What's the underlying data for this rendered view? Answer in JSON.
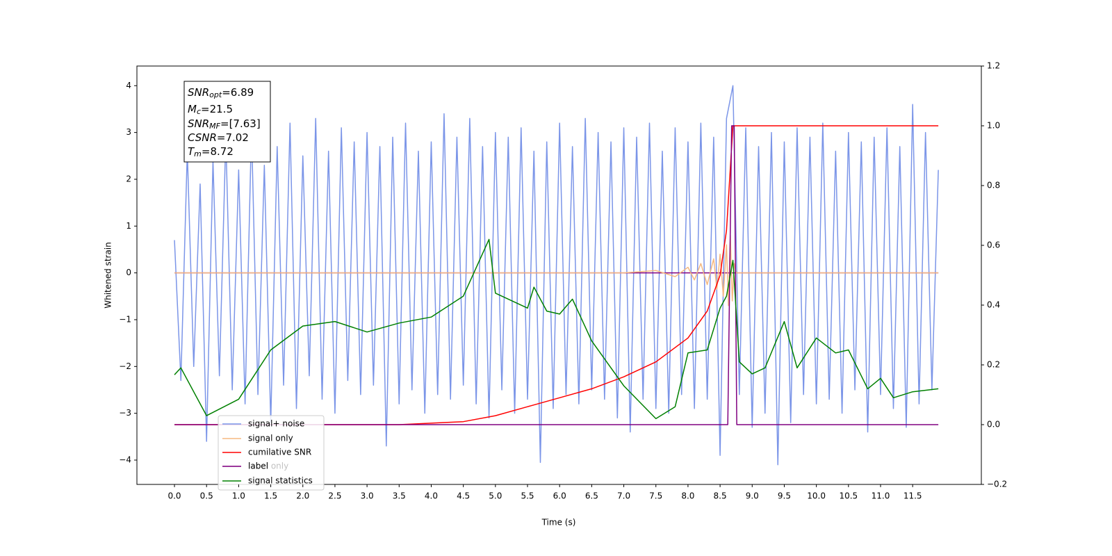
{
  "chart_data": {
    "type": "line",
    "x_label": "Time (s)",
    "y_label": "Whitened strain",
    "xlim": [
      -0.585,
      12.57
    ],
    "ylim": [
      -4.52,
      4.42
    ],
    "y2lim": [
      -0.2,
      1.2
    ],
    "xticks": [
      {
        "value": 0,
        "label": "0.0"
      },
      0.5,
      {
        "value": 1,
        "label": "1.0"
      },
      1.5,
      {
        "value": 2,
        "label": "2.0"
      },
      2.5,
      {
        "value": 3,
        "label": "3.0"
      },
      3.5,
      {
        "value": 4,
        "label": "4.0"
      },
      4.5,
      {
        "value": 5,
        "label": "5.0"
      },
      5.5,
      {
        "value": 6,
        "label": "6.0"
      },
      6.5,
      {
        "value": 7,
        "label": "7.0"
      },
      7.5,
      {
        "value": 8,
        "label": "8.0"
      },
      8.5,
      {
        "value": 9,
        "label": "9.0"
      },
      9.5,
      {
        "value": 10,
        "label": "10.0"
      },
      10.5,
      {
        "value": 11,
        "label": "11.0"
      },
      11.5
    ],
    "yticks": [
      {
        "value": -4,
        "label": "−4"
      },
      {
        "value": -3,
        "label": "−3"
      },
      {
        "value": -2,
        "label": "−2"
      },
      {
        "value": -1,
        "label": "−1"
      },
      0,
      1,
      2,
      3,
      4
    ],
    "y2ticks": [
      {
        "value": -0.2,
        "label": "−0.2"
      },
      {
        "value": 0,
        "label": "0.0"
      },
      0.2,
      0.4,
      0.6,
      0.8,
      {
        "value": 1,
        "label": "1.0"
      },
      1.2
    ],
    "annotation": [
      {
        "main": "SNR",
        "sub": "opt",
        "rest": "=6.89"
      },
      {
        "main": "M",
        "sub": "c",
        "rest": "=21.5"
      },
      {
        "main": "SNR",
        "sub": "MF",
        "rest": "=[7.63]"
      },
      {
        "main": "CSNR",
        "sub": null,
        "rest": "=7.02"
      },
      {
        "main": "T",
        "sub": "m",
        "rest": "=8.72"
      }
    ],
    "series": [
      {
        "name": "signal+ noise",
        "color": "#7b95e8",
        "axis": "y",
        "x": [
          0,
          0.1,
          0.2,
          0.3,
          0.4,
          0.5,
          0.6,
          0.7,
          0.8,
          0.9,
          1,
          1.1,
          1.2,
          1.3,
          1.4,
          1.5,
          1.6,
          1.7,
          1.8,
          1.9,
          2,
          2.1,
          2.2,
          2.3,
          2.4,
          2.5,
          2.6,
          2.7,
          2.8,
          2.9,
          3,
          3.1,
          3.2,
          3.3,
          3.4,
          3.5,
          3.6,
          3.7,
          3.8,
          3.9,
          4,
          4.1,
          4.2,
          4.3,
          4.4,
          4.5,
          4.6,
          4.7,
          4.8,
          4.9,
          5,
          5.1,
          5.2,
          5.3,
          5.4,
          5.5,
          5.6,
          5.7,
          5.8,
          5.9,
          6,
          6.1,
          6.2,
          6.3,
          6.4,
          6.5,
          6.6,
          6.7,
          6.8,
          6.9,
          7,
          7.1,
          7.2,
          7.3,
          7.4,
          7.5,
          7.6,
          7.7,
          7.8,
          7.9,
          8,
          8.1,
          8.2,
          8.3,
          8.4,
          8.5,
          8.6,
          8.7,
          8.8,
          8.9,
          9,
          9.1,
          9.2,
          9.3,
          9.4,
          9.5,
          9.6,
          9.7,
          9.8,
          9.9,
          10,
          10.1,
          10.2,
          10.3,
          10.4,
          10.5,
          10.6,
          10.7,
          10.8,
          10.9,
          11,
          11.1,
          11.2,
          11.3,
          11.4,
          11.5,
          11.6,
          11.7,
          11.8,
          11.9
        ],
        "values": [
          0.7,
          -2.3,
          2.6,
          -2.0,
          1.9,
          -3.6,
          2.4,
          -2.2,
          2.9,
          -2.5,
          2.2,
          -2.8,
          3.1,
          -2.6,
          2.3,
          -3.2,
          2.7,
          -2.4,
          3.2,
          -2.9,
          2.5,
          -2.2,
          3.3,
          -2.7,
          2.6,
          -3.0,
          3.1,
          -2.3,
          2.8,
          -2.6,
          3.0,
          -2.4,
          2.7,
          -3.7,
          2.9,
          -2.8,
          3.2,
          -2.5,
          2.6,
          -3.0,
          2.8,
          -2.6,
          3.4,
          -2.7,
          2.9,
          -2.4,
          3.3,
          -2.8,
          2.7,
          -3.1,
          3.0,
          -2.5,
          2.9,
          -3.0,
          3.1,
          -2.7,
          2.6,
          -4.05,
          2.8,
          -2.9,
          3.2,
          -2.6,
          2.7,
          -2.8,
          3.3,
          -2.5,
          3.0,
          -2.7,
          2.8,
          -3.1,
          3.1,
          -3.4,
          2.9,
          -2.7,
          3.2,
          -2.9,
          2.6,
          -3.0,
          3.1,
          -2.6,
          2.8,
          -2.9,
          3.2,
          -2.7,
          2.9,
          -3.9,
          3.3,
          4.0,
          -2.6,
          3.1,
          -3.3,
          2.7,
          -3.0,
          3.0,
          -4.1,
          2.8,
          -3.2,
          3.1,
          -2.6,
          2.9,
          -2.8,
          3.2,
          -2.7,
          2.6,
          -3.0,
          3.0,
          -2.5,
          2.8,
          -3.4,
          2.9,
          -2.6,
          3.1,
          -2.9,
          2.7,
          -3.3,
          3.6,
          -2.8,
          3.0,
          -2.5,
          2.2
        ]
      },
      {
        "name": "signal only",
        "color": "#f5b880",
        "axis": "y",
        "x": [
          0,
          7.0,
          7.5,
          7.8,
          8.0,
          8.1,
          8.2,
          8.3,
          8.4,
          8.45,
          8.5,
          8.55,
          8.6,
          8.63,
          8.66,
          8.69,
          8.72,
          8.75,
          11.9
        ],
        "values": [
          0,
          0,
          0.05,
          -0.08,
          0.12,
          -0.15,
          0.2,
          -0.25,
          0.3,
          -0.35,
          0.4,
          -0.5,
          0.6,
          -0.7,
          0.8,
          -0.6,
          0.2,
          0,
          0
        ]
      },
      {
        "name": "cumilative SNR",
        "color": "#ff0000",
        "axis": "y2",
        "x": [
          0,
          3.5,
          4.5,
          5.0,
          5.5,
          6.0,
          6.5,
          7.0,
          7.5,
          8.0,
          8.3,
          8.5,
          8.6,
          8.7,
          11.9
        ],
        "values": [
          0,
          0,
          0.01,
          0.03,
          0.06,
          0.09,
          0.12,
          0.16,
          0.21,
          0.29,
          0.38,
          0.5,
          0.65,
          1.0,
          1.0
        ]
      },
      {
        "name": "label",
        "color": "#800080",
        "axis": "y2",
        "x": [
          0,
          8.62,
          8.68,
          8.72,
          8.76,
          11.9
        ],
        "values": [
          0,
          0,
          1,
          1,
          0,
          0
        ]
      },
      {
        "name": "label only",
        "color": "#800080",
        "axis": "y",
        "x": [
          0,
          11.9
        ],
        "values": [
          0,
          0
        ]
      },
      {
        "name": "signal statistics",
        "color": "#008000",
        "axis": "y2",
        "x": [
          0,
          0.1,
          0.5,
          1.0,
          1.5,
          2.0,
          2.5,
          3.0,
          3.5,
          4.0,
          4.5,
          4.9,
          5.0,
          5.5,
          5.6,
          5.8,
          6.0,
          6.2,
          6.5,
          7.0,
          7.5,
          7.8,
          8.0,
          8.3,
          8.5,
          8.6,
          8.7,
          8.8,
          9.0,
          9.2,
          9.5,
          9.7,
          10.0,
          10.3,
          10.5,
          10.8,
          11.0,
          11.2,
          11.5,
          11.9
        ],
        "values": [
          0.167,
          0.19,
          0.03,
          0.085,
          0.25,
          0.33,
          0.345,
          0.31,
          0.34,
          0.36,
          0.43,
          0.62,
          0.44,
          0.39,
          0.46,
          0.38,
          0.37,
          0.42,
          0.28,
          0.13,
          0.02,
          0.06,
          0.24,
          0.25,
          0.39,
          0.43,
          0.55,
          0.21,
          0.17,
          0.19,
          0.345,
          0.19,
          0.29,
          0.24,
          0.25,
          0.12,
          0.155,
          0.09,
          0.11,
          0.12
        ]
      }
    ]
  }
}
